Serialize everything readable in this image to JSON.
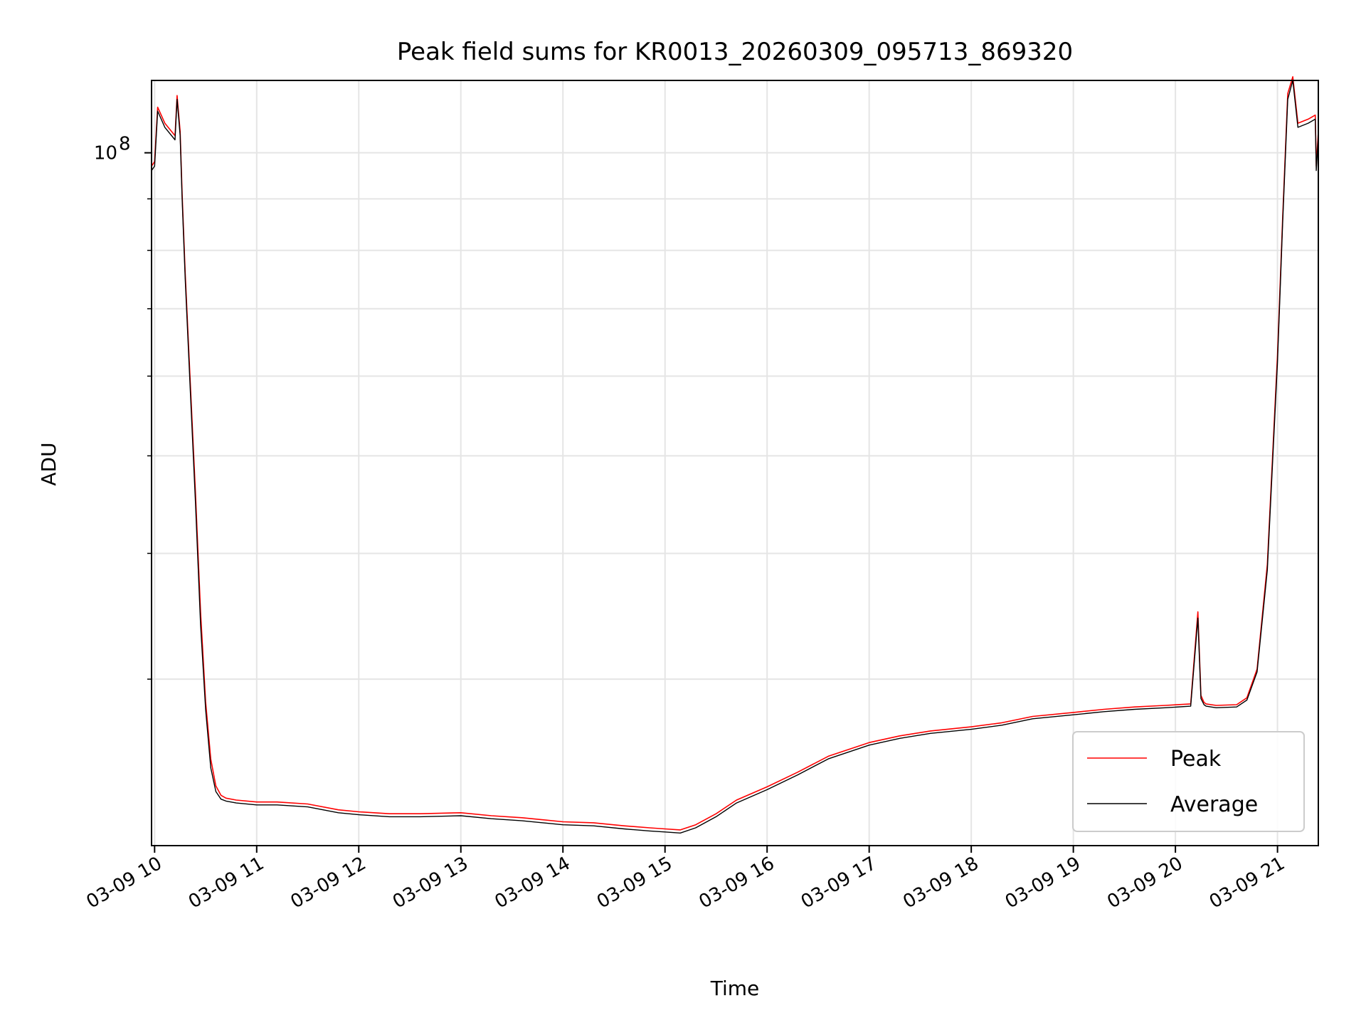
{
  "chart_data": {
    "type": "line",
    "title": "Peak field sums for KR0013_20260309_095713_869320",
    "xlabel": "Time",
    "ylabel": "ADU",
    "yscale": "log",
    "ylim": [
      20500000,
      118000000
    ],
    "xlim_hours": [
      9.97,
      21.4
    ],
    "x_tick_labels": [
      "03-09 10",
      "03-09 11",
      "03-09 12",
      "03-09 13",
      "03-09 14",
      "03-09 15",
      "03-09 16",
      "03-09 17",
      "03-09 18",
      "03-09 19",
      "03-09 20",
      "03-09 21"
    ],
    "x_tick_hours": [
      10,
      11,
      12,
      13,
      14,
      15,
      16,
      17,
      18,
      19,
      20,
      21
    ],
    "y_major_ticks": [
      {
        "value": 100000000,
        "base": "10",
        "exp": "8"
      }
    ],
    "y_minor_ticks": [
      30000000,
      40000000,
      50000000,
      60000000,
      70000000,
      80000000,
      90000000
    ],
    "grid": true,
    "legend": {
      "position": "lower-right",
      "entries": [
        "Peak",
        "Average"
      ]
    },
    "colors": {
      "Peak": "#ff0000",
      "Average": "#000000"
    },
    "series": [
      {
        "name": "Average",
        "x_hours": [
          9.97,
          10.0,
          10.03,
          10.1,
          10.2,
          10.22,
          10.25,
          10.27,
          10.3,
          10.35,
          10.4,
          10.45,
          10.5,
          10.55,
          10.6,
          10.65,
          10.7,
          10.8,
          11.0,
          11.2,
          11.5,
          11.8,
          12.0,
          12.3,
          12.6,
          13.0,
          13.3,
          13.6,
          14.0,
          14.3,
          14.6,
          14.85,
          15.0,
          15.15,
          15.3,
          15.5,
          15.7,
          16.0,
          16.3,
          16.6,
          17.0,
          17.3,
          17.6,
          18.0,
          18.3,
          18.6,
          19.0,
          19.3,
          19.6,
          19.9,
          20.15,
          20.22,
          20.25,
          20.28,
          20.3,
          20.4,
          20.6,
          20.7,
          20.8,
          20.9,
          21.0,
          21.05,
          21.1,
          21.15,
          21.2,
          21.3,
          21.37,
          21.38,
          21.4
        ],
        "values": [
          96000000,
          97000000,
          110000000,
          106000000,
          103000000,
          113000000,
          104000000,
          90000000,
          75000000,
          58000000,
          45000000,
          34000000,
          28000000,
          24500000,
          23200000,
          22800000,
          22700000,
          22600000,
          22500000,
          22500000,
          22400000,
          22100000,
          22000000,
          21900000,
          21900000,
          21950000,
          21800000,
          21700000,
          21500000,
          21450000,
          21300000,
          21200000,
          21150000,
          21100000,
          21350000,
          21900000,
          22600000,
          23300000,
          24100000,
          25000000,
          25800000,
          26200000,
          26500000,
          26750000,
          27000000,
          27400000,
          27650000,
          27850000,
          28000000,
          28100000,
          28200000,
          34500000,
          28700000,
          28300000,
          28200000,
          28100000,
          28150000,
          28600000,
          30500000,
          38500000,
          62000000,
          85000000,
          113000000,
          118000000,
          106000000,
          107000000,
          108000000,
          96000000,
          104000000
        ]
      },
      {
        "name": "Peak",
        "x_hours": [
          9.97,
          10.0,
          10.03,
          10.1,
          10.2,
          10.22,
          10.25,
          10.27,
          10.3,
          10.35,
          10.4,
          10.45,
          10.5,
          10.55,
          10.6,
          10.65,
          10.7,
          10.8,
          11.0,
          11.2,
          11.5,
          11.8,
          12.0,
          12.3,
          12.6,
          13.0,
          13.3,
          13.6,
          14.0,
          14.3,
          14.6,
          14.85,
          15.0,
          15.15,
          15.3,
          15.5,
          15.7,
          16.0,
          16.3,
          16.6,
          17.0,
          17.3,
          17.6,
          18.0,
          18.3,
          18.6,
          19.0,
          19.3,
          19.6,
          19.9,
          20.15,
          20.22,
          20.25,
          20.28,
          20.3,
          20.4,
          20.6,
          20.7,
          20.8,
          20.9,
          21.0,
          21.05,
          21.1,
          21.15,
          21.2,
          21.3,
          21.37,
          21.38,
          21.4
        ],
        "values": [
          97000000,
          98000000,
          111000000,
          107000000,
          104000000,
          114000000,
          105000000,
          91000000,
          76000000,
          59000000,
          46000000,
          35000000,
          28500000,
          25000000,
          23500000,
          23000000,
          22850000,
          22750000,
          22650000,
          22650000,
          22550000,
          22250000,
          22150000,
          22050000,
          22050000,
          22100000,
          21950000,
          21850000,
          21650000,
          21600000,
          21450000,
          21350000,
          21300000,
          21250000,
          21500000,
          22050000,
          22750000,
          23450000,
          24250000,
          25150000,
          25950000,
          26350000,
          26650000,
          26900000,
          27150000,
          27550000,
          27800000,
          28000000,
          28150000,
          28250000,
          28350000,
          35000000,
          28900000,
          28450000,
          28350000,
          28250000,
          28300000,
          28750000,
          30700000,
          39000000,
          63000000,
          86000000,
          114500000,
          119000000,
          107000000,
          108000000,
          109000000,
          97000000,
          105000000
        ]
      }
    ]
  }
}
